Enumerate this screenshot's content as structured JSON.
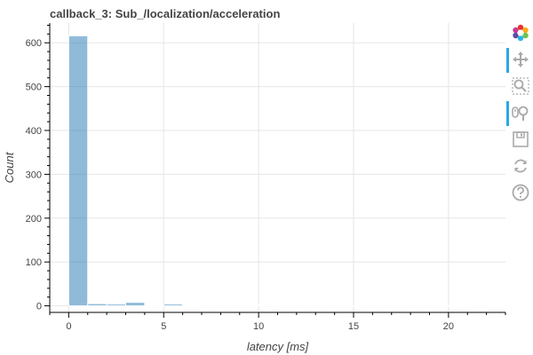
{
  "chart_data": {
    "type": "bar",
    "title": "callback_3: Sub_/localization/acceleration",
    "xlabel": "latency [ms]",
    "ylabel": "Count",
    "xlim": [
      -1,
      23
    ],
    "ylim": [
      -15,
      645
    ],
    "x_ticks": [
      0,
      5,
      10,
      15,
      20
    ],
    "y_ticks": [
      0,
      100,
      200,
      300,
      400,
      500,
      600
    ],
    "bar_color": "#1f77b4",
    "bins": [
      {
        "x0": 0.0,
        "x1": 1.0,
        "count": 616
      },
      {
        "x0": 1.0,
        "x1": 2.0,
        "count": 5
      },
      {
        "x0": 2.0,
        "x1": 3.0,
        "count": 4
      },
      {
        "x0": 3.0,
        "x1": 4.0,
        "count": 8
      },
      {
        "x0": 4.0,
        "x1": 5.0,
        "count": 0
      },
      {
        "x0": 5.0,
        "x1": 6.0,
        "count": 4
      },
      {
        "x0": 6.0,
        "x1": 7.0,
        "count": 1
      },
      {
        "x0": 7.0,
        "x1": 8.0,
        "count": 0
      },
      {
        "x0": 8.0,
        "x1": 9.0,
        "count": 0
      },
      {
        "x0": 9.0,
        "x1": 10.0,
        "count": 0
      },
      {
        "x0": 10.0,
        "x1": 11.0,
        "count": 2
      },
      {
        "x0": 11.0,
        "x1": 12.0,
        "count": 0
      },
      {
        "x0": 12.0,
        "x1": 13.0,
        "count": 0
      },
      {
        "x0": 13.0,
        "x1": 14.0,
        "count": 0
      },
      {
        "x0": 14.0,
        "x1": 15.0,
        "count": 0
      },
      {
        "x0": 15.0,
        "x1": 16.0,
        "count": 0
      },
      {
        "x0": 16.0,
        "x1": 17.0,
        "count": 0
      },
      {
        "x0": 17.0,
        "x1": 18.0,
        "count": 0
      },
      {
        "x0": 18.0,
        "x1": 19.0,
        "count": 0
      },
      {
        "x0": 19.0,
        "x1": 20.0,
        "count": 0
      },
      {
        "x0": 20.0,
        "x1": 21.0,
        "count": 1
      },
      {
        "x0": 21.0,
        "x1": 22.0,
        "count": 0
      },
      {
        "x0": 22.0,
        "x1": 23.0,
        "count": 1
      }
    ],
    "grid": true
  },
  "toolbar": {
    "tools": [
      {
        "name": "bokeh-logo-icon",
        "active": false
      },
      {
        "name": "pan-icon",
        "active": true
      },
      {
        "name": "box-zoom-icon",
        "active": false
      },
      {
        "name": "wheel-zoom-icon",
        "active": true
      },
      {
        "name": "save-icon",
        "active": false
      },
      {
        "name": "reset-icon",
        "active": false
      },
      {
        "name": "help-icon",
        "active": false
      }
    ]
  }
}
